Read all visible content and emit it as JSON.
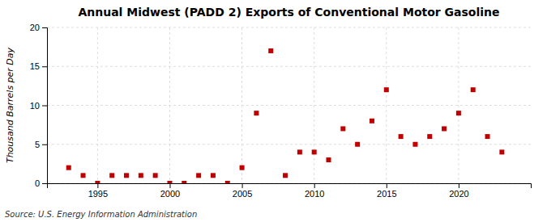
{
  "chart_data": {
    "type": "scatter",
    "title": "Annual Midwest (PADD 2) Exports of Conventional Motor Gasoline",
    "ylabel": "Thousand Barrels per Day",
    "source": "Source: U.S. Energy Information Administration",
    "x": [
      1993,
      1994,
      1995,
      1996,
      1997,
      1998,
      1999,
      2000,
      2001,
      2002,
      2003,
      2004,
      2005,
      2006,
      2007,
      2008,
      2009,
      2010,
      2011,
      2012,
      2013,
      2014,
      2015,
      2016,
      2017,
      2018,
      2019,
      2020,
      2021,
      2022,
      2023
    ],
    "values": [
      2.0,
      1.0,
      0.0,
      1.0,
      1.0,
      1.0,
      1.0,
      0.0,
      0.0,
      1.0,
      1.0,
      0.0,
      2.0,
      9.0,
      17.0,
      1.0,
      4.0,
      4.0,
      3.0,
      7.0,
      5.0,
      8.0,
      12.0,
      6.0,
      5.0,
      6.0,
      7.0,
      9.0,
      12.0,
      6.0,
      4.0
    ],
    "color": "#c00000",
    "marker": "square",
    "xlim": [
      1991.5,
      2025
    ],
    "xticks": [
      1995,
      2000,
      2005,
      2010,
      2015,
      2020
    ],
    "ylim": [
      0,
      20
    ],
    "yticks": [
      0,
      5,
      10,
      15,
      20
    ],
    "grid": true
  }
}
